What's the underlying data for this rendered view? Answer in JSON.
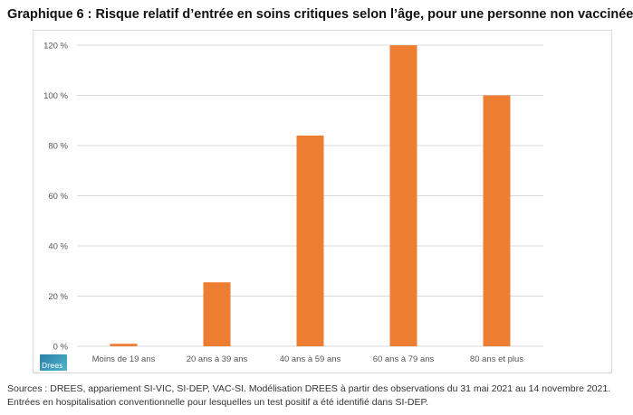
{
  "title": "Graphique 6 : Risque relatif d’entrée en soins critiques selon l’âge, pour une personne non vaccinée",
  "logo_text": "Drees",
  "notes": {
    "line1": "Sources : DREES, appariement SI-VIC, SI-DEP, VAC-SI. Modélisation DREES à partir des observations du 31 mai 2021 au 14 novembre 2021.",
    "line2": "Entrées en hospitalisation conventionnelle pour lesquelles un test positif a été identifié dans SI-DEP."
  },
  "colors": {
    "bar": "#ED7D31",
    "grid": "#d9d9d9"
  },
  "chart_data": {
    "type": "bar",
    "categories": [
      "Moins de 19 ans",
      "20 ans à 39 ans",
      "40 ans à 59 ans",
      "60 ans à 79 ans",
      "80 ans et plus"
    ],
    "values": [
      1,
      25.5,
      84,
      120,
      100
    ],
    "title": "",
    "xlabel": "",
    "ylabel": "",
    "ylim": [
      0,
      120
    ],
    "yticks": [
      0,
      20,
      40,
      60,
      80,
      100,
      120
    ],
    "ytick_labels": [
      "0 %",
      "20 %",
      "40 %",
      "60 %",
      "80 %",
      "100 %",
      "120 %"
    ],
    "grid": true,
    "legend": "none"
  }
}
